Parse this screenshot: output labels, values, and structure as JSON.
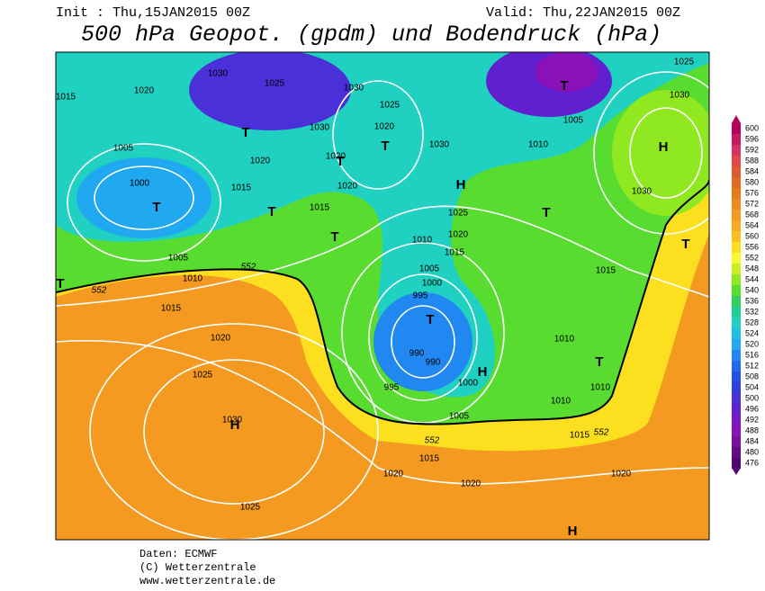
{
  "header": {
    "init": "Init : Thu,15JAN2015 00Z",
    "valid": "Valid: Thu,22JAN2015 00Z",
    "title": "500 hPa Geopot. (gpdm) und Bodendruck (hPa)"
  },
  "colorbar": {
    "levels": [
      600,
      596,
      592,
      588,
      584,
      580,
      576,
      572,
      568,
      564,
      560,
      556,
      552,
      548,
      544,
      540,
      536,
      532,
      528,
      524,
      520,
      516,
      512,
      508,
      504,
      500,
      496,
      492,
      488,
      484,
      480,
      476
    ],
    "colors": [
      "#b4005a",
      "#c8185f",
      "#d83060",
      "#e04848",
      "#e05a30",
      "#e06a20",
      "#e87a18",
      "#f08a20",
      "#f49a20",
      "#f8aa20",
      "#fcc020",
      "#fce020",
      "#f8f830",
      "#c8f020",
      "#90e820",
      "#58dc30",
      "#30d060",
      "#20d090",
      "#20d0c0",
      "#20c0e0",
      "#20a8f0",
      "#2088f0",
      "#2068f0",
      "#2050e8",
      "#3040e0",
      "#4a30d8",
      "#6020d0",
      "#7818c8",
      "#8a10b8",
      "#7a10a0",
      "#640c88",
      "#500870"
    ]
  },
  "map": {
    "isobar_labels": [
      "1015",
      "1020",
      "1030",
      "1025",
      "1030",
      "1025",
      "1020",
      "1030",
      "1030",
      "1005",
      "1010",
      "1025",
      "1030",
      "1030",
      "1005",
      "1000",
      "1020",
      "1015",
      "1020",
      "1015",
      "1025",
      "1010",
      "1020",
      "1015",
      "1005",
      "1010",
      "1005",
      "1000",
      "995",
      "990",
      "990",
      "995",
      "1000",
      "1005",
      "1015",
      "1020",
      "1025",
      "1030",
      "1025",
      "1015",
      "1010",
      "1010",
      "1010",
      "1015",
      "1015",
      "1020",
      "1020",
      "1020",
      "1020"
    ],
    "contour_552": [
      "552",
      "552",
      "552",
      "552"
    ],
    "pressure_centers": [
      "T",
      "T",
      "T",
      "T",
      "T",
      "T",
      "T",
      "T",
      "T",
      "T",
      "T",
      "T",
      "H",
      "H",
      "H",
      "H",
      "H"
    ]
  },
  "footer": {
    "source": "Daten: ECMWF",
    "copyright": "(C) Wetterzentrale",
    "url": "www.wetterzentrale.de"
  }
}
